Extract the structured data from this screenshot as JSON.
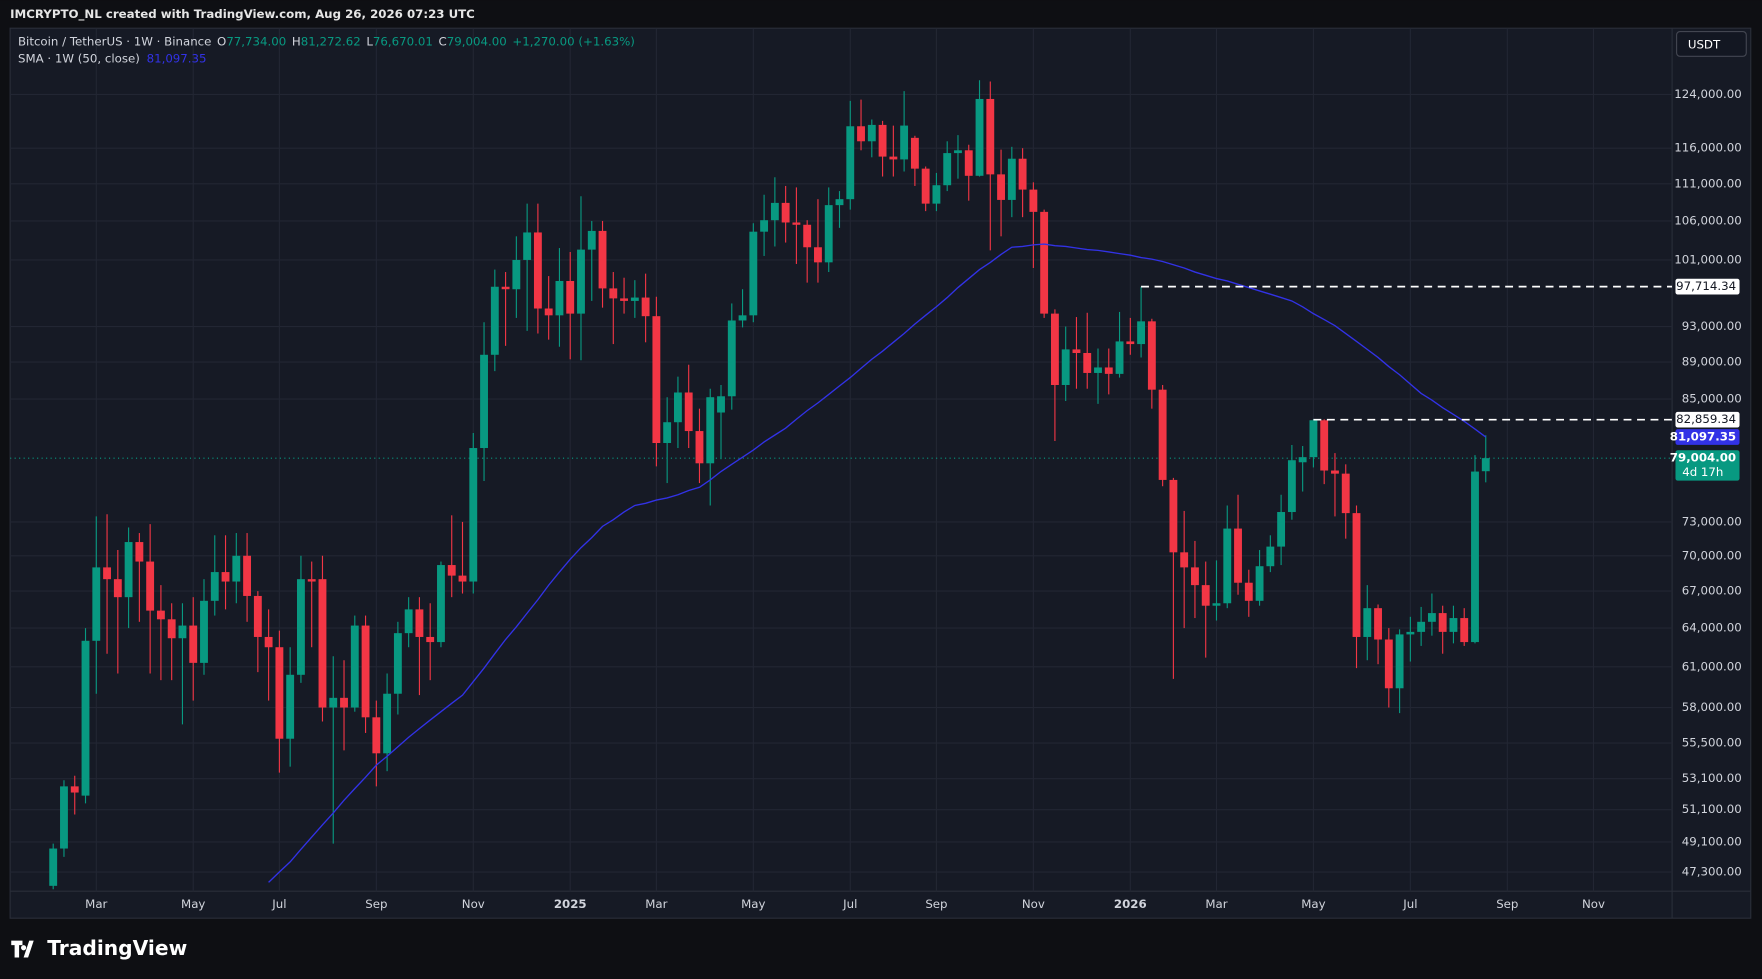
{
  "header": "IMCRYPTO_NL created with TradingView.com, Aug 26, 2026 07:23 UTC",
  "branding": "TradingView",
  "chart_data": {
    "type": "candlestick",
    "symbol": "Bitcoin / TetherUS · 1W · Binance",
    "legend": [
      {
        "key": "O",
        "text": "77,734.00"
      },
      {
        "key": "H",
        "text": "81,272.62"
      },
      {
        "key": "L",
        "text": "76,670.01"
      },
      {
        "key": "C",
        "text": "79,004.00"
      }
    ],
    "change": "+1,270.00 (+1.63%)",
    "up_color": "#089981",
    "down_color": "#f23645",
    "open": [
      46500,
      48700,
      52600,
      52000,
      63000,
      69000,
      68000,
      66500,
      71200,
      69500,
      65400,
      64700,
      63200,
      64200,
      61300,
      66200,
      68600,
      67800,
      70000,
      66600,
      63300,
      62500,
      55800,
      60400,
      68000,
      68000,
      58000,
      58700,
      58000,
      64200,
      57300,
      54800,
      59000,
      63600,
      65500,
      63300,
      62900,
      69200,
      68300,
      67800,
      80000,
      89800,
      97700,
      97400,
      101000,
      104500,
      95100,
      94300,
      98400,
      94500,
      102300,
      104700,
      97500,
      96300,
      96000,
      96400,
      94200,
      80500,
      82600,
      85700,
      81700,
      78500,
      83600,
      85300,
      93700,
      94300,
      104600,
      106100,
      108400,
      105800,
      105500,
      102600,
      100700,
      108100,
      108900,
      119200,
      117000,
      119400,
      114800,
      114400,
      117500,
      113100,
      108300,
      110800,
      115300,
      115700,
      112100,
      123300,
      112300,
      108800,
      114500,
      110200,
      107200,
      94500,
      86500,
      90400,
      90000,
      87800,
      88400,
      87700,
      91300,
      91000,
      93600,
      86000,
      76900,
      70300,
      69000,
      67500,
      65800,
      66000,
      72400,
      67700,
      66200,
      69100,
      70800,
      73900,
      78600,
      79100,
      82800,
      77800,
      77500,
      73800,
      63300,
      65600,
      63100,
      59400,
      63500,
      63700,
      64500,
      65200,
      63700,
      64800,
      62900,
      77734
    ],
    "high": [
      49000,
      53000,
      53300,
      64000,
      73500,
      73700,
      70500,
      72500,
      72000,
      72800,
      67500,
      66000,
      66000,
      66500,
      68000,
      71800,
      71800,
      72000,
      72000,
      67000,
      65500,
      63800,
      62500,
      70000,
      69500,
      70000,
      61800,
      61500,
      65000,
      65000,
      58500,
      60500,
      64500,
      66500,
      66500,
      66000,
      69500,
      73600,
      73000,
      81500,
      93500,
      99800,
      99500,
      104000,
      108300,
      108300,
      99000,
      102500,
      102000,
      109300,
      106000,
      106000,
      99500,
      98800,
      98500,
      99300,
      96500,
      85200,
      87400,
      88700,
      84000,
      86100,
      86500,
      95700,
      97400,
      105700,
      109500,
      111900,
      110700,
      110500,
      106100,
      108900,
      110500,
      110000,
      123000,
      123200,
      120200,
      120000,
      119300,
      124500,
      117800,
      113400,
      112500,
      117000,
      117900,
      116500,
      126200,
      126000,
      115800,
      116200,
      116000,
      111200,
      107500,
      95000,
      93000,
      94100,
      94600,
      90500,
      90500,
      94700,
      94000,
      97700,
      93900,
      86500,
      77100,
      74000,
      71300,
      69500,
      69600,
      74500,
      75500,
      68800,
      70500,
      71800,
      75500,
      80300,
      80200,
      82900,
      82900,
      79500,
      78400,
      74500,
      67500,
      65900,
      64000,
      63900,
      64900,
      65700,
      66800,
      65800,
      65800,
      65600,
      79300,
      81272.62
    ],
    "low": [
      46300,
      48200,
      50800,
      51500,
      59000,
      62000,
      60500,
      64000,
      64500,
      60500,
      60000,
      60000,
      56800,
      58500,
      60400,
      65000,
      65500,
      66000,
      64500,
      60600,
      58500,
      53500,
      53900,
      59800,
      62500,
      57000,
      49000,
      55000,
      57700,
      56200,
      52600,
      53600,
      57500,
      62500,
      58900,
      60000,
      62500,
      66500,
      66800,
      66800,
      76800,
      88000,
      90800,
      94000,
      92500,
      92200,
      91500,
      90700,
      89300,
      89200,
      96000,
      95200,
      91000,
      94500,
      94000,
      91200,
      78200,
      76600,
      80000,
      80000,
      76600,
      74500,
      78900,
      83900,
      92900,
      93500,
      101500,
      102700,
      103200,
      100500,
      98200,
      98200,
      99500,
      105100,
      107500,
      115700,
      114700,
      112000,
      112000,
      112700,
      110700,
      107300,
      107300,
      110000,
      111700,
      108700,
      112000,
      102200,
      104000,
      106500,
      106500,
      100000,
      94000,
      80700,
      84800,
      86100,
      86100,
      84500,
      85500,
      87300,
      89800,
      89500,
      84000,
      76300,
      60100,
      64000,
      64800,
      61700,
      64600,
      65600,
      66700,
      64900,
      65800,
      68600,
      69200,
      73200,
      75800,
      78100,
      76500,
      73500,
      71500,
      60900,
      61500,
      61200,
      58000,
      57600,
      61400,
      62600,
      63400,
      62000,
      62800,
      62600,
      62800,
      76670.01
    ],
    "close": [
      48700,
      52600,
      52200,
      63000,
      69000,
      68000,
      66500,
      71200,
      69500,
      65400,
      64700,
      63200,
      64200,
      61300,
      66200,
      68600,
      67800,
      70000,
      66600,
      63300,
      62500,
      55800,
      60400,
      68000,
      67800,
      58000,
      58700,
      58000,
      64200,
      57300,
      54800,
      59000,
      63600,
      65500,
      63300,
      62900,
      69200,
      68300,
      67800,
      80000,
      89800,
      97700,
      97400,
      101000,
      104500,
      95100,
      94300,
      98400,
      94500,
      102300,
      104700,
      97500,
      96300,
      96000,
      96400,
      94200,
      80500,
      82600,
      85700,
      81700,
      78500,
      85200,
      85300,
      93700,
      94300,
      104600,
      106100,
      108400,
      105800,
      105500,
      102600,
      100700,
      108100,
      108900,
      119200,
      117000,
      119400,
      114800,
      114400,
      119300,
      113100,
      108300,
      110800,
      115300,
      115700,
      112100,
      123300,
      112300,
      108800,
      114500,
      110200,
      107200,
      94500,
      86500,
      90400,
      90000,
      87800,
      88400,
      87700,
      91300,
      91000,
      93600,
      86000,
      76900,
      70300,
      69000,
      67500,
      65800,
      66000,
      72400,
      67700,
      66200,
      69100,
      70800,
      73900,
      78800,
      79100,
      82800,
      77800,
      77500,
      73800,
      63300,
      65600,
      63100,
      59400,
      63500,
      63700,
      64500,
      65200,
      63700,
      64800,
      62900,
      77700,
      79004
    ],
    "series": [
      {
        "name": "SMA · 1W (50, close)",
        "color": "#3232e6",
        "value_label": "81,097.35",
        "values": [
          null,
          null,
          null,
          null,
          null,
          null,
          null,
          null,
          null,
          null,
          null,
          null,
          null,
          null,
          null,
          null,
          null,
          null,
          null,
          null,
          46700,
          47300,
          47900,
          48650,
          49400,
          50150,
          50900,
          51700,
          52450,
          53200,
          54000,
          54600,
          55250,
          55900,
          56500,
          57100,
          57700,
          58300,
          58900,
          59900,
          60900,
          62000,
          63100,
          64100,
          65200,
          66300,
          67500,
          68600,
          69700,
          70700,
          71600,
          72600,
          73200,
          73900,
          74500,
          74700,
          75000,
          75200,
          75500,
          75900,
          76200,
          76900,
          77700,
          78400,
          79100,
          79800,
          80600,
          81300,
          82000,
          82900,
          83800,
          84600,
          85500,
          86400,
          87300,
          88300,
          89300,
          90200,
          91200,
          92200,
          93300,
          94300,
          95300,
          96400,
          97600,
          98700,
          99800,
          100700,
          101700,
          102600,
          102700,
          102900,
          103000,
          102800,
          102700,
          102500,
          102300,
          102200,
          102000,
          101800,
          101600,
          101300,
          101100,
          100800,
          100400,
          100000,
          99500,
          99100,
          98700,
          98400,
          98000,
          97600,
          97200,
          96800,
          96400,
          96000,
          95300,
          94500,
          93800,
          93100,
          92200,
          91300,
          90400,
          89500,
          88500,
          87600,
          86600,
          85600,
          84900,
          84100,
          83400,
          82700,
          81900,
          81097.35
        ]
      }
    ],
    "xlim": [
      -4,
      150.3
    ],
    "xticks": [
      {
        "value": 4,
        "label": "Mar"
      },
      {
        "value": 13,
        "label": "May"
      },
      {
        "value": 21,
        "label": "Jul"
      },
      {
        "value": 30,
        "label": "Sep"
      },
      {
        "value": 39,
        "label": "Nov"
      },
      {
        "value": 48,
        "label": "2025"
      },
      {
        "value": 56,
        "label": "Mar"
      },
      {
        "value": 65,
        "label": "May"
      },
      {
        "value": 74,
        "label": "Jul"
      },
      {
        "value": 82,
        "label": "Sep"
      },
      {
        "value": 91,
        "label": "Nov"
      },
      {
        "value": 100,
        "label": "2026"
      },
      {
        "value": 108,
        "label": "Mar"
      },
      {
        "value": 117,
        "label": "May"
      },
      {
        "value": 126,
        "label": "Jul"
      },
      {
        "value": 135,
        "label": "Sep"
      },
      {
        "value": 143,
        "label": "Nov"
      }
    ],
    "ylim": [
      46190,
      134600
    ],
    "log_y": true,
    "grid": true,
    "yticks": [
      {
        "value": 124000,
        "label": "124,000.00"
      },
      {
        "value": 116000,
        "label": "116,000.00"
      },
      {
        "value": 111000,
        "label": "111,000.00"
      },
      {
        "value": 106000,
        "label": "106,000.00"
      },
      {
        "value": 101000,
        "label": "101,000.00"
      },
      {
        "value": 93000,
        "label": "93,000.00"
      },
      {
        "value": 89000,
        "label": "89,000.00"
      },
      {
        "value": 85000,
        "label": "85,000.00"
      },
      {
        "value": 73000,
        "label": "73,000.00"
      },
      {
        "value": 70000,
        "label": "70,000.00"
      },
      {
        "value": 67000,
        "label": "67,000.00"
      },
      {
        "value": 64000,
        "label": "64,000.00"
      },
      {
        "value": 61000,
        "label": "61,000.00"
      },
      {
        "value": 58000,
        "label": "58,000.00"
      },
      {
        "value": 55500,
        "label": "55,500.00"
      },
      {
        "value": 53100,
        "label": "53,100.00"
      },
      {
        "value": 51100,
        "label": "51,100.00"
      },
      {
        "value": 49100,
        "label": "49,100.00"
      },
      {
        "value": 47300,
        "label": "47,300.00"
      }
    ],
    "price_lines": [
      {
        "value": 97714.34,
        "label": "97,714.34",
        "start": 101
      },
      {
        "value": 82859.34,
        "label": "82,859.34",
        "start": 117
      }
    ],
    "last_price_label": "79,004.00",
    "countdown": "4d 17h",
    "currency": "USDT"
  }
}
